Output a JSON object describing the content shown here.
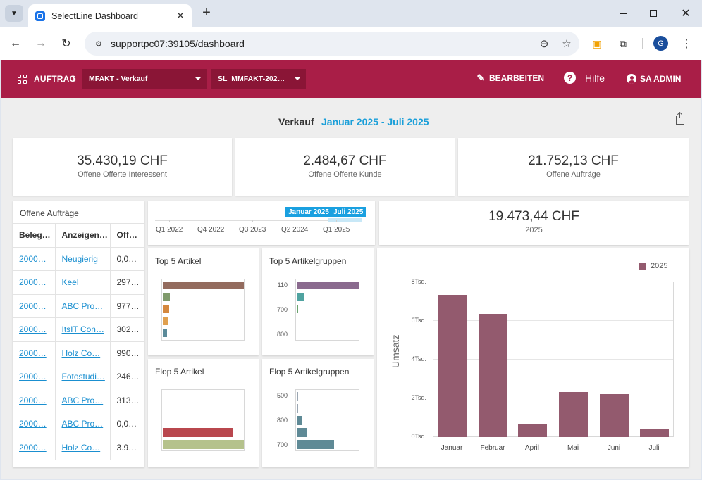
{
  "browser": {
    "tab_title": "SelectLine Dashboard",
    "url": "supportpc07:39105/dashboard",
    "profile_initial": "G"
  },
  "appbar": {
    "module_label": "AUFTRAG",
    "select1": "MFAKT - Verkauf",
    "select2": "SL_MMFAKT-202…",
    "edit_label": "BEARBEITEN",
    "help_label": "Hilfe",
    "user_label": "SA ADMIN",
    "color": "#a91e47"
  },
  "dashboard": {
    "title": "Verkauf",
    "range": "Januar 2025 - Juli 2025"
  },
  "kpis": [
    {
      "value": "35.430,19 CHF",
      "label": "Offene Offerte Interessent"
    },
    {
      "value": "2.484,67 CHF",
      "label": "Offene Offerte Kunde"
    },
    {
      "value": "21.752,13 CHF",
      "label": "Offene Aufträge"
    },
    {
      "value": "19.473,44 CHF",
      "label": "2025"
    }
  ],
  "orders_table": {
    "title": "Offene Aufträge",
    "headers": [
      "Beleg…",
      "Anzeigen…",
      "Off…"
    ],
    "rows": [
      [
        "2000…",
        "Neugierig",
        "0,0…"
      ],
      [
        "2000…",
        "Keel",
        "297…"
      ],
      [
        "2000…",
        "ABC Pro…",
        "977…"
      ],
      [
        "2000…",
        "ItsIT Con…",
        "302…"
      ],
      [
        "2000…",
        "Holz Co…",
        "990…"
      ],
      [
        "2000…",
        "Fotostudi…",
        "246…"
      ],
      [
        "2000…",
        "ABC Pro…",
        "313…"
      ],
      [
        "2000…",
        "ABC Pro…",
        "0,0…"
      ],
      [
        "2000…",
        "Holz Co…",
        "3.9…"
      ]
    ]
  },
  "range_navigator": {
    "labels": [
      "Q1 2022",
      "Q4 2022",
      "Q3 2023",
      "Q2 2024",
      "Q1 2025"
    ],
    "badge_start": "Januar 2025",
    "badge_end": "Juli 2025",
    "accent": "#1aa0e0"
  },
  "top5_artikel": {
    "title": "Top 5 Artikel",
    "bars": [
      {
        "value": 1.0,
        "color": "#936b5e"
      },
      {
        "value": 0.09,
        "color": "#7f9a6b"
      },
      {
        "value": 0.08,
        "color": "#d4883e"
      },
      {
        "value": 0.06,
        "color": "#e0a04f"
      },
      {
        "value": 0.05,
        "color": "#5b8a99"
      }
    ]
  },
  "top5_gruppen": {
    "title": "Top 5 Artikelgruppen",
    "labels": [
      "110",
      "700",
      "800"
    ],
    "bars": [
      {
        "value": 1.0,
        "color": "#8a6a8e"
      },
      {
        "value": 0.12,
        "color": "#4fa3a0"
      },
      {
        "value": 0.02,
        "color": "#6aa36e"
      }
    ]
  },
  "flop5_artikel": {
    "title": "Flop 5 Artikel",
    "bars": [
      {
        "value": 0.0,
        "color": "#cccccc"
      },
      {
        "value": 0.0,
        "color": "#cccccc"
      },
      {
        "value": 0.0,
        "color": "#cccccc"
      },
      {
        "value": 0.87,
        "color": "#b9474e"
      },
      {
        "value": 1.0,
        "color": "#b5c28c"
      }
    ]
  },
  "flop5_gruppen": {
    "title": "Flop 5 Artikelgruppen",
    "labels": [
      "500",
      "800",
      "700"
    ],
    "bars": [
      {
        "value": 0.01,
        "color": "#9aa6b2"
      },
      {
        "value": 0.02,
        "color": "#9aa6b2"
      },
      {
        "value": 0.08,
        "color": "#5f8a96"
      },
      {
        "value": 0.17,
        "color": "#5f8a96"
      },
      {
        "value": 0.6,
        "color": "#5f8a96"
      }
    ]
  },
  "chart_data": {
    "type": "bar",
    "categories": [
      "Januar",
      "Februar",
      "April",
      "Mai",
      "Juni",
      "Juli"
    ],
    "series": [
      {
        "name": "2025",
        "values": [
          7300,
          6350,
          650,
          2300,
          2200,
          400
        ],
        "color": "#935a6e"
      }
    ],
    "ylabel": "Umsatz",
    "ylim": [
      0,
      8000
    ],
    "yticks": [
      "0Tsd.",
      "2Tsd.",
      "4Tsd.",
      "6Tsd.",
      "8Tsd."
    ],
    "grid": true,
    "legend": "top-right"
  }
}
